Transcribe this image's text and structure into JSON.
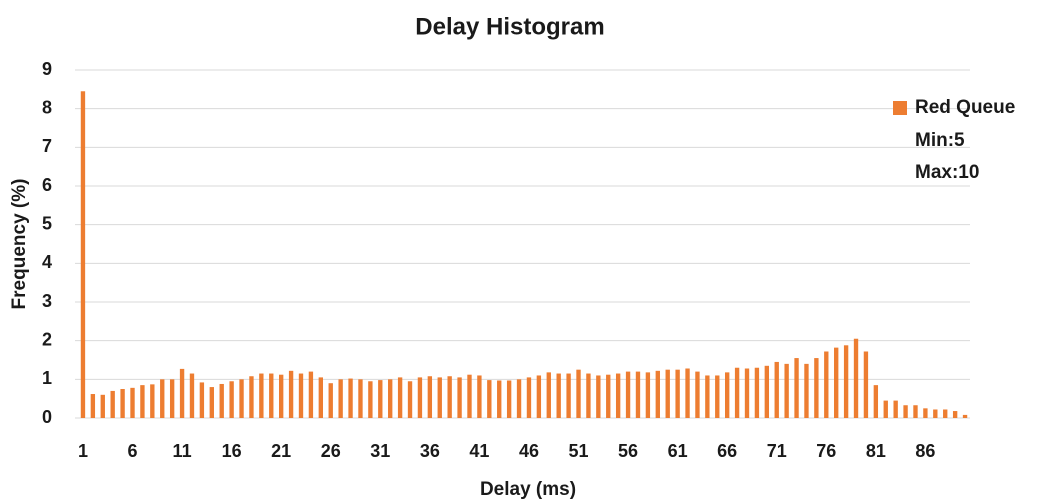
{
  "chart_data": {
    "type": "bar",
    "title": "Delay Histogram",
    "x_label": "Delay (ms)",
    "y_label": "Frequency (%)",
    "categories": [
      "1",
      null,
      null,
      null,
      null,
      "6",
      null,
      null,
      null,
      null,
      "11",
      null,
      null,
      null,
      null,
      "16",
      null,
      null,
      null,
      null,
      "21",
      null,
      null,
      null,
      null,
      "26",
      null,
      null,
      null,
      null,
      "31",
      null,
      null,
      null,
      null,
      "36",
      null,
      null,
      null,
      null,
      "41",
      null,
      null,
      null,
      null,
      "46",
      null,
      null,
      null,
      null,
      "51",
      null,
      null,
      null,
      null,
      "56",
      null,
      null,
      null,
      null,
      "61",
      null,
      null,
      null,
      null,
      "66",
      null,
      null,
      null,
      null,
      "71",
      null,
      null,
      null,
      null,
      "76",
      null,
      null,
      null,
      null,
      "81",
      null,
      null,
      null,
      null,
      "86",
      null,
      null,
      null,
      null
    ],
    "series": [
      {
        "name": "Red Queue",
        "color": "#ed7d31",
        "values": [
          8.45,
          0.62,
          0.6,
          0.7,
          0.75,
          0.78,
          0.85,
          0.87,
          1.0,
          1.0,
          1.27,
          1.15,
          0.92,
          0.8,
          0.88,
          0.95,
          1.0,
          1.08,
          1.15,
          1.15,
          1.12,
          1.22,
          1.15,
          1.2,
          1.05,
          0.9,
          1.0,
          1.02,
          1.0,
          0.95,
          0.98,
          1.0,
          1.05,
          0.95,
          1.05,
          1.08,
          1.05,
          1.08,
          1.05,
          1.12,
          1.1,
          0.98,
          0.97,
          0.97,
          1.0,
          1.05,
          1.1,
          1.18,
          1.15,
          1.15,
          1.25,
          1.15,
          1.1,
          1.12,
          1.15,
          1.2,
          1.2,
          1.18,
          1.22,
          1.25,
          1.25,
          1.28,
          1.2,
          1.1,
          1.1,
          1.18,
          1.3,
          1.28,
          1.3,
          1.35,
          1.45,
          1.4,
          1.55,
          1.4,
          1.55,
          1.72,
          1.82,
          1.88,
          2.05,
          1.72,
          0.85,
          0.45,
          0.45,
          0.33,
          0.33,
          0.25,
          0.22,
          0.22,
          0.18,
          0.08
        ]
      }
    ],
    "legend_notes": [
      "Min:5",
      "Max:10"
    ],
    "ylim": [
      0,
      9
    ],
    "yticks": [
      0,
      1,
      2,
      3,
      4,
      5,
      6,
      7,
      8,
      9
    ],
    "grid": true,
    "legend": "upper right"
  }
}
